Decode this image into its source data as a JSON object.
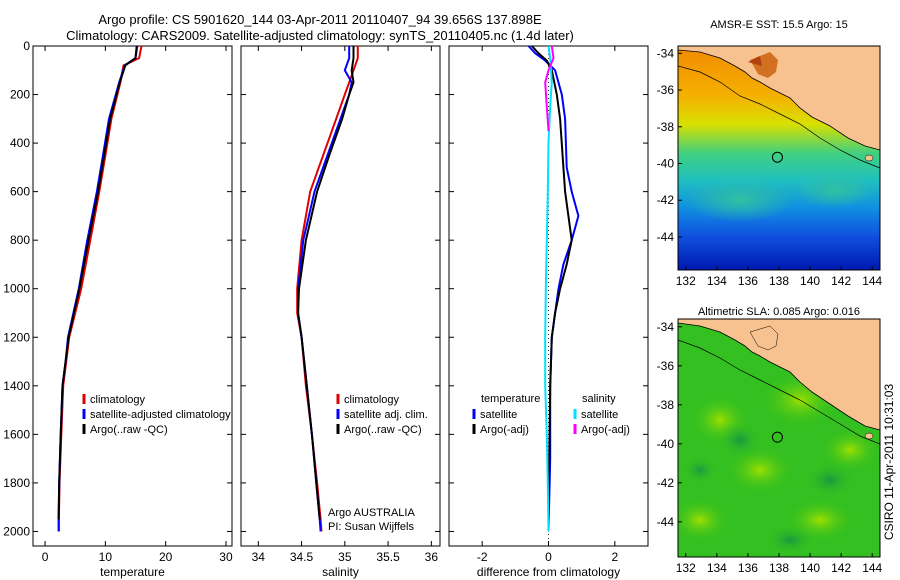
{
  "title_line1": "Argo profile: CS 5901620_144 03-Apr-2011 20110407_94 39.656S 137.898E",
  "title_line2": "Climatology: CARS2009. Satellite-adjusted climatology: synTS_20110405.nc (1.4d later)",
  "side_label": "CSIRO 11-Apr-2011 10:31:03",
  "colors": {
    "climatology": "#e00000",
    "satellite": "#0000ff",
    "argo": "#000000",
    "cyan": "#00e0ff",
    "magenta": "#ff00ff",
    "land": "#f7c28f"
  },
  "chart_data": [
    {
      "type": "line",
      "xlabel": "temperature",
      "ylabel": "",
      "xlim": [
        -2,
        31
      ],
      "ylim": [
        2060,
        0
      ],
      "x_ticks": [
        "0",
        "10",
        "20",
        "30"
      ],
      "y_ticks": [
        "0",
        "200",
        "400",
        "600",
        "800",
        "1000",
        "1200",
        "1400",
        "1600",
        "1800",
        "2000"
      ],
      "legend": [
        "climatology",
        "satellite-adjusted climatology",
        "Argo(..raw -QC)"
      ],
      "series": [
        {
          "name": "climatology",
          "color": "#e00000",
          "x": [
            16,
            15.6,
            13,
            12.5,
            11,
            10,
            9,
            7.5,
            6,
            5,
            4,
            3.5,
            3,
            2.7,
            2.4,
            2.3,
            2.3
          ],
          "y": [
            0,
            50,
            80,
            150,
            300,
            450,
            600,
            800,
            1000,
            1100,
            1200,
            1300,
            1400,
            1600,
            1800,
            1950,
            2000
          ]
        },
        {
          "name": "satellite-adjusted climatology",
          "color": "#0000ff",
          "x": [
            15.3,
            15,
            13.2,
            12.3,
            10.6,
            9.6,
            8.6,
            7,
            5.6,
            4.7,
            3.8,
            3.4,
            2.9,
            2.6,
            2.35,
            2.25,
            2.25
          ],
          "y": [
            0,
            50,
            80,
            150,
            300,
            450,
            600,
            800,
            1000,
            1100,
            1200,
            1300,
            1400,
            1600,
            1800,
            1950,
            2000
          ]
        },
        {
          "name": "Argo(..raw -QC)",
          "color": "#000000",
          "x": [
            15.2,
            15,
            13.3,
            12.4,
            10.8,
            9.8,
            8.8,
            7.2,
            5.7,
            4.8,
            3.9,
            3.4,
            2.9,
            2.6,
            2.35,
            2.25
          ],
          "y": [
            0,
            50,
            80,
            150,
            300,
            450,
            600,
            800,
            1000,
            1100,
            1200,
            1300,
            1400,
            1600,
            1800,
            1950
          ]
        }
      ]
    },
    {
      "type": "line",
      "xlabel": "salinity",
      "xlim": [
        33.8,
        36.1
      ],
      "ylim": [
        2060,
        0
      ],
      "x_ticks": [
        "34",
        "34.5",
        "35",
        "35.5",
        "36"
      ],
      "legend": [
        "climatology",
        "satellite adj. clim.",
        "Argo(..raw -QC)"
      ],
      "annotation": [
        "Argo AUSTRALIA",
        "PI: Susan Wijffels"
      ],
      "series": [
        {
          "name": "climatology",
          "color": "#e00000",
          "x": [
            35.15,
            35.15,
            35.1,
            35.05,
            35.0,
            34.9,
            34.75,
            34.6,
            34.5,
            34.45,
            34.45,
            34.5,
            34.55,
            34.62,
            34.68,
            34.72,
            34.73
          ],
          "y": [
            0,
            50,
            100,
            150,
            200,
            300,
            450,
            600,
            800,
            1000,
            1100,
            1200,
            1400,
            1600,
            1800,
            1950,
            2000
          ]
        },
        {
          "name": "satellite adj. clim.",
          "color": "#0000ff",
          "x": [
            35.05,
            35.05,
            35.0,
            35.08,
            35.05,
            34.95,
            34.8,
            34.65,
            34.52,
            34.46,
            34.46,
            34.5,
            34.56,
            34.62,
            34.67,
            34.71,
            34.72
          ],
          "y": [
            0,
            50,
            100,
            150,
            200,
            300,
            450,
            600,
            800,
            1000,
            1100,
            1200,
            1400,
            1600,
            1800,
            1950,
            2000
          ]
        },
        {
          "name": "Argo(..raw -QC)",
          "color": "#000000",
          "x": [
            35.1,
            35.1,
            35.08,
            35.1,
            35.05,
            34.97,
            34.82,
            34.68,
            34.55,
            34.47,
            34.46,
            34.5,
            34.56,
            34.62,
            34.67,
            34.71
          ],
          "y": [
            0,
            50,
            100,
            150,
            200,
            300,
            450,
            600,
            800,
            1000,
            1100,
            1200,
            1400,
            1600,
            1800,
            1950
          ]
        }
      ]
    },
    {
      "type": "line",
      "xlabel": "difference from climatology",
      "xlim": [
        -3,
        3
      ],
      "ylim": [
        2060,
        0
      ],
      "x_ticks": [
        "-2",
        "0",
        "2"
      ],
      "legend_headers": [
        "temperature",
        "salinity"
      ],
      "legend": [
        "satellite",
        "Argo(-adj)",
        "satellite",
        "Argo(-adj)"
      ],
      "series": [
        {
          "name": "temperature satellite",
          "color": "#0000ff",
          "x": [
            -0.6,
            -0.4,
            -0.1,
            0.2,
            0.4,
            0.5,
            0.55,
            0.7,
            0.9,
            0.7,
            0.45,
            0.3,
            0.2,
            0.1,
            0.05,
            0.05,
            0.0
          ],
          "y": [
            0,
            30,
            60,
            100,
            200,
            300,
            500,
            600,
            700,
            800,
            900,
            1000,
            1100,
            1200,
            1400,
            1700,
            2000
          ]
        },
        {
          "name": "temperature Argo(-adj)",
          "color": "#000000",
          "x": [
            -0.5,
            -0.3,
            -0.05,
            0.1,
            0.25,
            0.35,
            0.45,
            0.5,
            0.6,
            0.7,
            0.55,
            0.35,
            0.2,
            0.1,
            0.05,
            0.0
          ],
          "y": [
            0,
            30,
            60,
            100,
            200,
            300,
            500,
            600,
            700,
            800,
            900,
            1000,
            1100,
            1200,
            1400,
            1950
          ]
        },
        {
          "name": "salinity satellite",
          "color": "#00e0ff",
          "x": [
            0.0,
            0.05,
            0.1,
            0.05,
            0.0,
            -0.02,
            -0.05,
            -0.08,
            -0.1,
            -0.1,
            -0.05,
            -0.02,
            0.0
          ],
          "y": [
            0,
            50,
            150,
            250,
            400,
            600,
            800,
            1000,
            1200,
            1400,
            1600,
            1800,
            2000
          ]
        },
        {
          "name": "salinity Argo(-adj)",
          "color": "#ff00ff",
          "x": [
            0.1,
            0.15,
            0.0,
            -0.1,
            -0.05,
            0.0
          ],
          "y": [
            0,
            50,
            100,
            150,
            250,
            350
          ]
        }
      ]
    },
    {
      "type": "heatmap",
      "title": "AMSR-E SST: 15.5 Argo: 15",
      "x_ticks": [
        "132",
        "134",
        "136",
        "138",
        "140",
        "142",
        "144"
      ],
      "y_ticks": [
        "-34",
        "-36",
        "-38",
        "-40",
        "-42",
        "-44"
      ],
      "xlim": [
        131.5,
        144.5
      ],
      "ylim": [
        -45.8,
        -33.6
      ],
      "float_position": {
        "lon": 137.898,
        "lat": -39.656
      }
    },
    {
      "type": "heatmap",
      "title": "Altimetric SLA: 0.085 Argo: 0.016",
      "x_ticks": [
        "132",
        "134",
        "136",
        "138",
        "140",
        "142",
        "144"
      ],
      "y_ticks": [
        "-34",
        "-36",
        "-38",
        "-40",
        "-42",
        "-44"
      ],
      "xlim": [
        131.5,
        144.5
      ],
      "ylim": [
        -45.8,
        -33.6
      ],
      "float_position": {
        "lon": 137.898,
        "lat": -39.656
      }
    }
  ]
}
